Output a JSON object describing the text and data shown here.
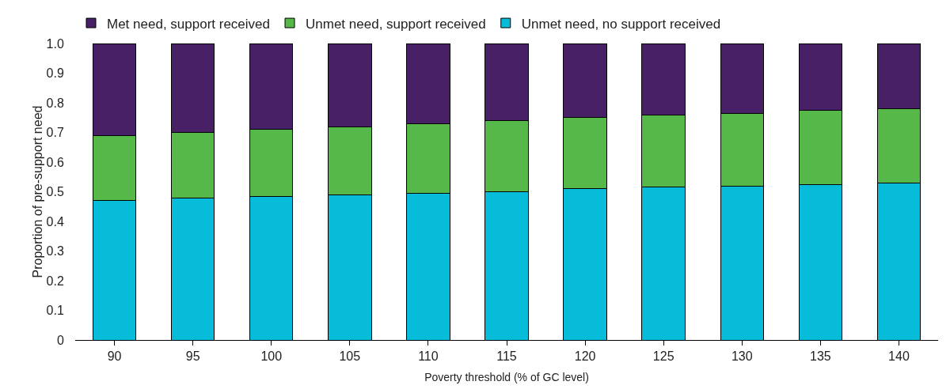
{
  "chart_data": {
    "type": "bar",
    "stacked": true,
    "xlabel": "Poverty threshold (% of GC level)",
    "ylabel": "Proportion of pre-support need",
    "categories": [
      "90",
      "95",
      "100",
      "105",
      "110",
      "115",
      "120",
      "125",
      "130",
      "135",
      "140"
    ],
    "series": [
      {
        "name": "Unmet need, no support received",
        "color": "#06bcd9",
        "values": [
          0.47,
          0.48,
          0.485,
          0.49,
          0.495,
          0.5,
          0.51,
          0.515,
          0.52,
          0.525,
          0.53
        ]
      },
      {
        "name": "Unmet need, support received",
        "color": "#56b848",
        "values": [
          0.22,
          0.22,
          0.225,
          0.23,
          0.235,
          0.24,
          0.24,
          0.245,
          0.245,
          0.25,
          0.25
        ]
      },
      {
        "name": "Met need, support received",
        "color": "#482066",
        "values": [
          0.31,
          0.3,
          0.29,
          0.28,
          0.27,
          0.26,
          0.25,
          0.24,
          0.235,
          0.225,
          0.22
        ]
      }
    ],
    "ylim": [
      0,
      1
    ],
    "yticks": [
      0,
      0.1,
      0.2,
      0.3,
      0.4,
      0.5,
      0.6,
      0.7,
      0.8,
      0.9,
      {
        "value": 1,
        "label": "1.0"
      }
    ],
    "grid": false,
    "legend": "top left"
  }
}
